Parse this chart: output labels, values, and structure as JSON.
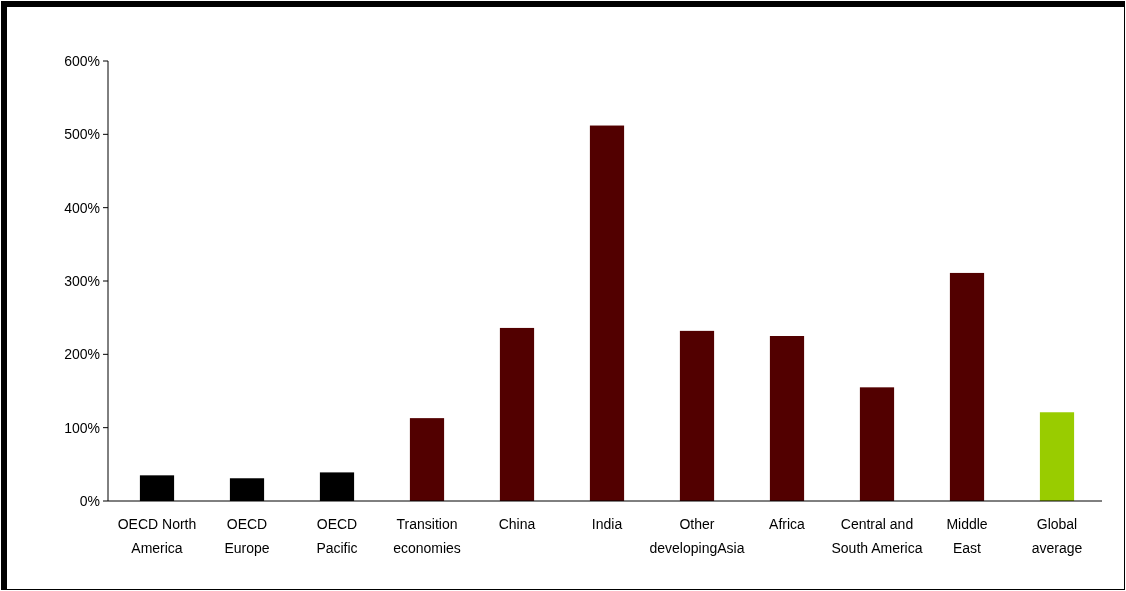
{
  "chart_data": {
    "type": "bar",
    "categories": [
      "OECD North America",
      "OECD Europe",
      "OECD Pacific",
      "Transition economies",
      "China",
      "India",
      "Other developingAsia",
      "Africa",
      "Central and South America",
      "Middle East",
      "Global average"
    ],
    "values": [
      35,
      31,
      39,
      113,
      236,
      512,
      232,
      225,
      155,
      311,
      121
    ],
    "colors": [
      "#000000",
      "#000000",
      "#000000",
      "#520000",
      "#520000",
      "#520000",
      "#520000",
      "#520000",
      "#520000",
      "#520000",
      "#99cc00"
    ],
    "ylim": [
      0,
      600
    ],
    "yticks": [
      {
        "value": 0,
        "label": "0%"
      },
      {
        "value": 100,
        "label": "100%"
      },
      {
        "value": 200,
        "label": "200%"
      },
      {
        "value": 300,
        "label": "300%"
      },
      {
        "value": 400,
        "label": "400%"
      },
      {
        "value": 500,
        "label": "500%"
      },
      {
        "value": 600,
        "label": "600%"
      }
    ],
    "grid": false
  }
}
